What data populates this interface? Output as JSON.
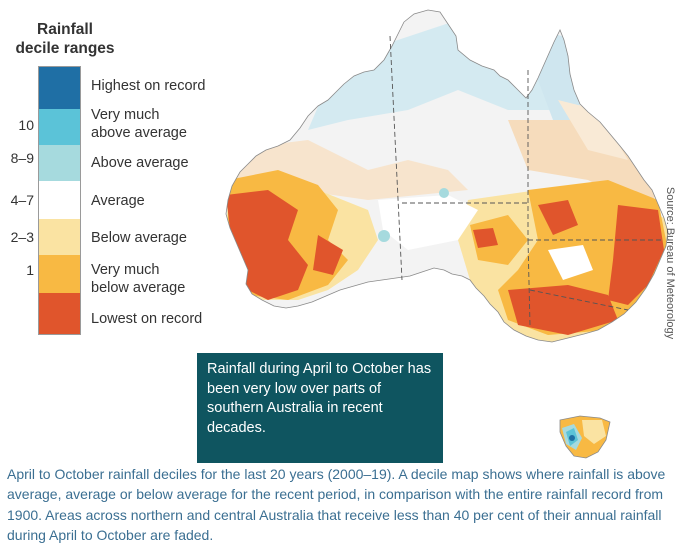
{
  "legend": {
    "title_line1": "Rainfall",
    "title_line2": "decile ranges",
    "categories": [
      {
        "label_line1": "Highest on record",
        "label_line2": "",
        "decile": "",
        "color": "#1f6fa5"
      },
      {
        "label_line1": "Very much",
        "label_line2": "above average",
        "decile": "10",
        "color": "#5bc3d8"
      },
      {
        "label_line1": "Above average",
        "label_line2": "",
        "decile": "8–9",
        "color": "#a6dade"
      },
      {
        "label_line1": "Average",
        "label_line2": "",
        "decile": "4–7",
        "color": "#ffffff"
      },
      {
        "label_line1": "Below average",
        "label_line2": "",
        "decile": "2–3",
        "color": "#fae3a2"
      },
      {
        "label_line1": "Very much",
        "label_line2": "below average",
        "decile": "1",
        "color": "#f8b943"
      },
      {
        "label_line1": "Lowest on record",
        "label_line2": "",
        "decile": "",
        "color": "#e0552c"
      }
    ]
  },
  "callout": {
    "text": "Rainfall during April to October has been very low over parts of southern Australia in recent decades."
  },
  "source": "Source: Bureau of Meteorology",
  "caption": "April to October rainfall deciles for the last 20 years (2000–19). A decile map shows where rainfall is above average, average or below average for the recent period, in comparison with the entire rainfall record from 1900. Areas across northern and central Australia that receive less than 40 per cent of their annual rainfall during April to October are faded.",
  "map_colors": {
    "faded_blue": "#ddeef5",
    "faded_above": "#cbe6ee",
    "faded_average": "#f3f3f3",
    "faded_below": "#f9ead6",
    "faded_very_below": "#f6d9b6",
    "border": "#555555"
  }
}
